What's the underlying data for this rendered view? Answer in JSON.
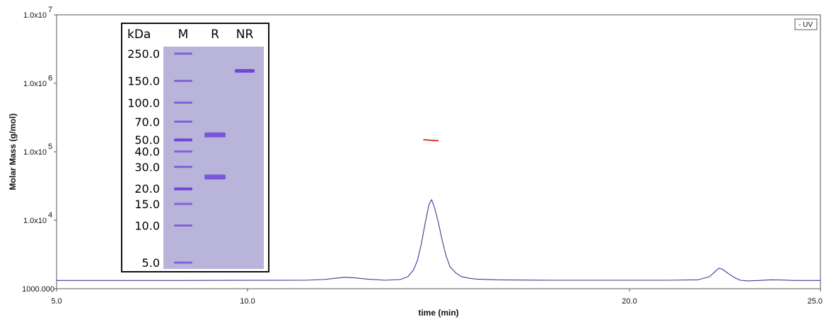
{
  "chart_data": {
    "type": "line",
    "xlabel": "time (min)",
    "ylabel": "Molar Mass (g/mol)",
    "xlim": [
      5.0,
      25.0
    ],
    "x_ticks": [
      "5.0",
      "10.0",
      "20.0",
      "25.0"
    ],
    "x_tick_values": [
      5.0,
      10.0,
      20.0,
      25.0
    ],
    "y_scale": "log",
    "ylim": [
      1000,
      10000000
    ],
    "y_ticks": [
      {
        "value": 1000,
        "mantissa": "1000.000",
        "exp": ""
      },
      {
        "value": 10000,
        "mantissa": "1.0x10",
        "exp": "4"
      },
      {
        "value": 100000,
        "mantissa": "1.0x10",
        "exp": "5"
      },
      {
        "value": 1000000,
        "mantissa": "1.0x10",
        "exp": "6"
      },
      {
        "value": 10000000,
        "mantissa": "1.0x10",
        "exp": "7"
      }
    ],
    "legend": {
      "label": "- UV",
      "placement": "top-right"
    },
    "series": [
      {
        "name": "UV",
        "color": "#3a3a9a",
        "x": [
          5.0,
          6.0,
          8.0,
          10.0,
          11.5,
          12.0,
          12.3,
          12.55,
          12.8,
          13.2,
          13.6,
          14.0,
          14.2,
          14.35,
          14.45,
          14.55,
          14.65,
          14.75,
          14.82,
          14.9,
          15.0,
          15.1,
          15.2,
          15.3,
          15.45,
          15.6,
          15.8,
          16.0,
          16.5,
          17.0,
          18.0,
          19.0,
          20.0,
          21.0,
          21.8,
          22.1,
          22.25,
          22.35,
          22.45,
          22.6,
          22.75,
          22.9,
          23.1,
          23.4,
          23.7,
          24.0,
          24.3,
          25.0
        ],
        "y": [
          1320,
          1320,
          1320,
          1325,
          1330,
          1360,
          1420,
          1470,
          1440,
          1370,
          1330,
          1360,
          1500,
          1900,
          2600,
          4500,
          9000,
          17000,
          20000,
          15000,
          9000,
          5000,
          3000,
          2100,
          1700,
          1500,
          1420,
          1380,
          1350,
          1340,
          1330,
          1330,
          1330,
          1330,
          1350,
          1500,
          1800,
          2000,
          1900,
          1650,
          1450,
          1330,
          1300,
          1320,
          1350,
          1340,
          1320,
          1320
        ]
      },
      {
        "name": "Molar Mass",
        "color": "#d02020",
        "x": [
          14.6,
          14.75,
          14.9,
          15.0
        ],
        "y": [
          150000,
          148000,
          146000,
          145000
        ]
      }
    ],
    "inset": {
      "type": "gel",
      "lanes": [
        "M",
        "R",
        "NR"
      ],
      "unit_label": "kDa",
      "marker_labels": [
        "250.0",
        "150.0",
        "100.0",
        "70.0",
        "50.0",
        "40.0",
        "30.0",
        "20.0",
        "15.0",
        "10.0",
        "5.0"
      ],
      "marker_kda": [
        250,
        150,
        100,
        70,
        50,
        40,
        30,
        20,
        15,
        10,
        5
      ],
      "sample_bands_kda": {
        "R": [
          55,
          25
        ],
        "NR": [
          180
        ]
      },
      "band_color": "#6a3fd8",
      "gel_color": "#b9b4da"
    }
  }
}
